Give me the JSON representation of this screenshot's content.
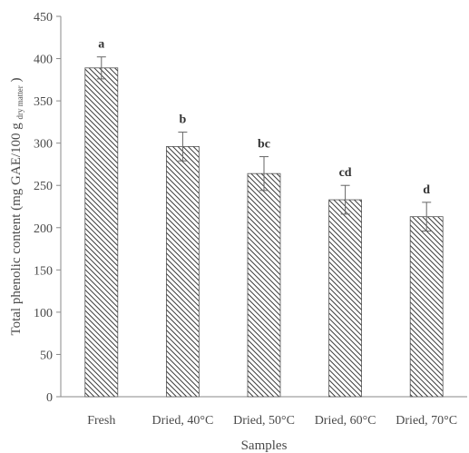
{
  "chart_data": {
    "type": "bar",
    "categories": [
      "Fresh",
      "Dried, 40°C",
      "Dried, 50°C",
      "Dried, 60°C",
      "Dried, 70°C"
    ],
    "values": [
      389,
      296,
      264,
      233,
      213
    ],
    "errors": [
      13,
      17,
      20,
      17,
      17
    ],
    "significance_letters": [
      "a",
      "b",
      "bc",
      "cd",
      "d"
    ],
    "xlabel": "Samples",
    "ylabel": "Total phenolic content (mg GAE/100 g",
    "ylabel_subscript": "dry matter",
    "ylabel_suffix": ")",
    "ylim": [
      0,
      450
    ],
    "yticks": [
      0,
      50,
      100,
      150,
      200,
      250,
      300,
      350,
      400,
      450
    ],
    "grid": false,
    "legend": "none",
    "bar_pattern": "diagonal-hatch",
    "colors": {
      "bar_fill": "#ffffff",
      "hatch": "#3a3a3a",
      "axis": "#8a8a8a",
      "text": "#4a4a4a"
    }
  }
}
